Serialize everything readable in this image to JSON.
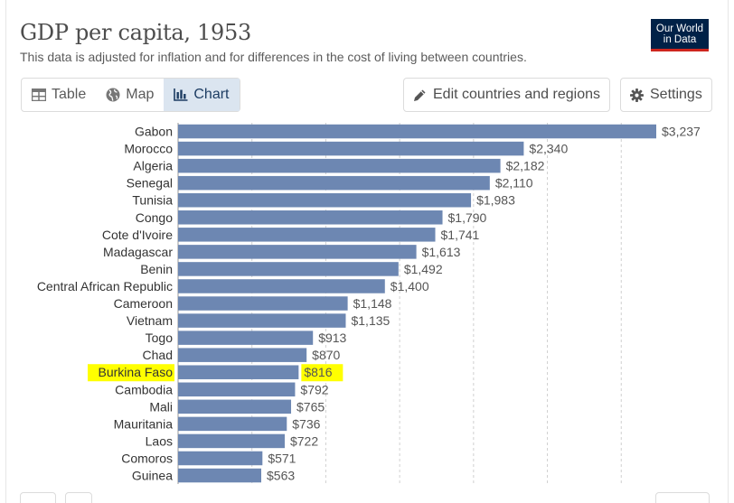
{
  "header": {
    "title": "GDP per capita, 1953",
    "subtitle": "This data is adjusted for inflation and for differences in the cost of living between countries.",
    "logo_line1": "Our World",
    "logo_line2": "in Data"
  },
  "toolbar": {
    "tabs": [
      {
        "label": "Table",
        "icon": "table-icon"
      },
      {
        "label": "Map",
        "icon": "globe-icon"
      },
      {
        "label": "Chart",
        "icon": "bar-chart-icon"
      }
    ],
    "active_tab": "Chart",
    "edit_label": "Edit countries and regions",
    "settings_label": "Settings"
  },
  "colors": {
    "bar": "#6d87b2",
    "highlight": "#ffff00",
    "grid": "#d0d0d0"
  },
  "chart_data": {
    "type": "bar",
    "orientation": "horizontal",
    "value_prefix": "$",
    "grid": true,
    "highlighted": "Burkina Faso",
    "categories": [
      "Gabon",
      "Morocco",
      "Algeria",
      "Senegal",
      "Tunisia",
      "Congo",
      "Cote d'Ivoire",
      "Madagascar",
      "Benin",
      "Central African Republic",
      "Cameroon",
      "Vietnam",
      "Togo",
      "Chad",
      "Burkina Faso",
      "Cambodia",
      "Mali",
      "Mauritania",
      "Laos",
      "Comoros",
      "Guinea"
    ],
    "values": [
      3237,
      2340,
      2182,
      2110,
      1983,
      1790,
      1741,
      1613,
      1492,
      1400,
      1148,
      1135,
      913,
      870,
      816,
      792,
      765,
      736,
      722,
      571,
      563
    ],
    "labels": [
      "$3,237",
      "$2,340",
      "$2,182",
      "$2,110",
      "$1,983",
      "$1,790",
      "$1,741",
      "$1,613",
      "$1,492",
      "$1,400",
      "$1,148",
      "$1,135",
      "$913",
      "$870",
      "$816",
      "$792",
      "$765",
      "$736",
      "$722",
      "$571",
      "$563"
    ],
    "xlim": [
      0,
      3237
    ],
    "gridlines": [
      0,
      500,
      1000,
      1500,
      2000,
      2500,
      3000
    ]
  }
}
